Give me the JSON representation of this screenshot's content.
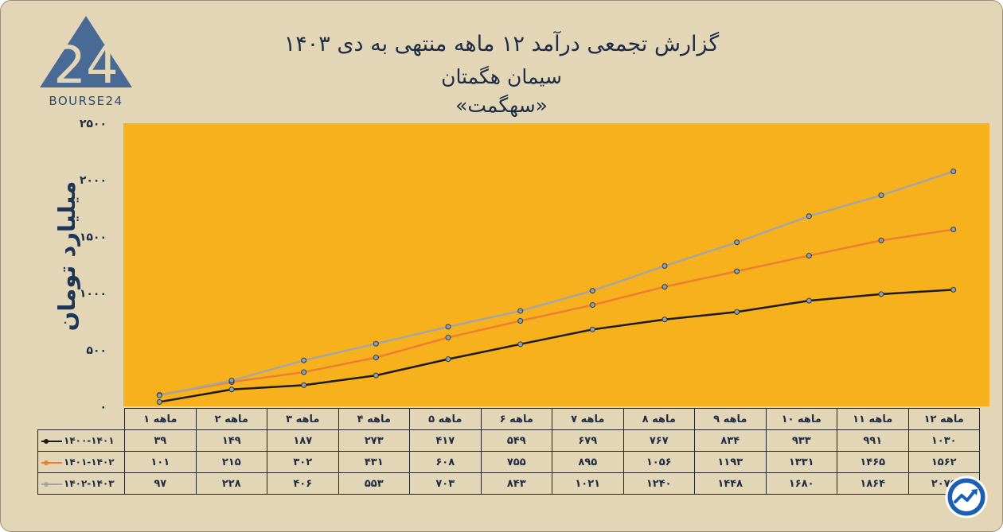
{
  "title": {
    "line1": "گزارش تجمعی درآمد ۱۲ ماهه منتهی به دی ۱۴۰۳",
    "line2": "سیمان هگمتان",
    "line3": "«سهگمت»"
  },
  "logo": {
    "text": "BOURSE24",
    "mark": "24"
  },
  "colors": {
    "background": "#e2d6b6",
    "plot_area": "#f6b11d",
    "black_series": "#1b1b1b",
    "orange_series": "#ee7e31",
    "gray_series": "#a5a5a5",
    "logo": "#4a6a96"
  },
  "icons": {
    "badge": "trend-chart-badge-icon"
  },
  "chart_data": {
    "type": "line",
    "ylabel": "میلیارد تومان",
    "ylim": [
      0,
      2500
    ],
    "yticks": [
      0,
      500,
      1000,
      1500,
      2000,
      2500
    ],
    "ytick_labels": [
      "۰",
      "۵۰۰",
      "۱۰۰۰",
      "۱۵۰۰",
      "۲۰۰۰",
      "۲۵۰۰"
    ],
    "categories": [
      "۱ ماهه",
      "۲ ماهه",
      "۳ ماهه",
      "۴ ماهه",
      "۵ ماهه",
      "۶ ماهه",
      "۷ ماهه",
      "۸ ماهه",
      "۹ ماهه",
      "۱۰ ماهه",
      "۱۱ ماهه",
      "۱۲ ماهه"
    ],
    "grid": false,
    "series": [
      {
        "name": "۱۴۰۰-۱۴۰۱",
        "color": "#1b1b1b",
        "values": [
          39,
          149,
          187,
          273,
          417,
          549,
          679,
          767,
          834,
          933,
          991,
          1030
        ],
        "labels": [
          "۳۹",
          "۱۴۹",
          "۱۸۷",
          "۲۷۳",
          "۴۱۷",
          "۵۴۹",
          "۶۷۹",
          "۷۶۷",
          "۸۳۴",
          "۹۳۳",
          "۹۹۱",
          "۱۰۳۰"
        ]
      },
      {
        "name": "۱۴۰۱-۱۴۰۲",
        "color": "#ee7e31",
        "values": [
          101,
          215,
          302,
          431,
          608,
          755,
          895,
          1056,
          1193,
          1331,
          1465,
          1562
        ],
        "labels": [
          "۱۰۱",
          "۲۱۵",
          "۳۰۲",
          "۴۳۱",
          "۶۰۸",
          "۷۵۵",
          "۸۹۵",
          "۱۰۵۶",
          "۱۱۹۳",
          "۱۳۳۱",
          "۱۴۶۵",
          "۱۵۶۲"
        ]
      },
      {
        "name": "۱۴۰۲-۱۴۰۳",
        "color": "#a5a5a5",
        "values": [
          97,
          228,
          406,
          553,
          703,
          843,
          1021,
          1240,
          1448,
          1680,
          1864,
          2075
        ],
        "labels": [
          "۹۷",
          "۲۲۸",
          "۴۰۶",
          "۵۵۳",
          "۷۰۳",
          "۸۴۳",
          "۱۰۲۱",
          "۱۲۴۰",
          "۱۴۴۸",
          "۱۶۸۰",
          "۱۸۶۴",
          "۲۰۷۵"
        ]
      }
    ]
  }
}
